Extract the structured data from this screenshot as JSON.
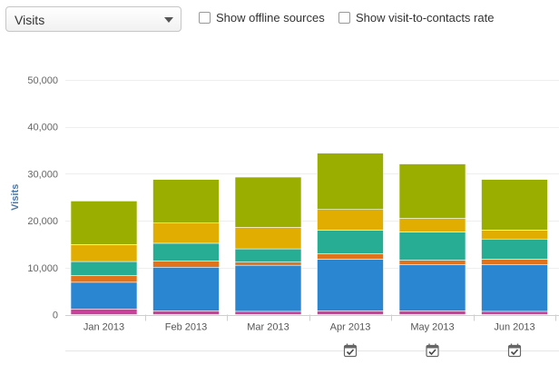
{
  "controls": {
    "metric_select": {
      "value": "Visits"
    },
    "offline_sources": {
      "label": "Show offline sources",
      "checked": false
    },
    "visit_rate": {
      "label": "Show visit-to-contacts rate",
      "checked": false
    }
  },
  "chart_data": {
    "type": "bar",
    "stacked": true,
    "ylabel": "Visits",
    "ylim": [
      0,
      50000
    ],
    "yticks": [
      0,
      10000,
      20000,
      30000,
      40000,
      50000
    ],
    "ytick_labels": [
      "0",
      "10,000",
      "20,000",
      "30,000",
      "40,000",
      "50,000"
    ],
    "categories": [
      "Jan 2013",
      "Feb 2013",
      "Mar 2013",
      "Apr 2013",
      "May 2013",
      "Jun 2013"
    ],
    "series": [
      {
        "color": "#c9419a",
        "values": [
          1200,
          800,
          700,
          800,
          800,
          700
        ]
      },
      {
        "color": "#2a86d0",
        "values": [
          5700,
          9300,
          9800,
          11000,
          9800,
          9900
        ]
      },
      {
        "color": "#e2731d",
        "values": [
          1400,
          1300,
          700,
          1200,
          1000,
          1200
        ]
      },
      {
        "color": "#26ad93",
        "values": [
          3000,
          3800,
          2800,
          5000,
          6000,
          4300
        ]
      },
      {
        "color": "#e1ad00",
        "values": [
          3600,
          4300,
          4600,
          4400,
          2900,
          1900
        ]
      },
      {
        "color": "#9aae00",
        "values": [
          9300,
          9300,
          10700,
          12000,
          11600,
          10800
        ]
      }
    ],
    "grid": true,
    "annotations": [
      "Apr 2013",
      "May 2013",
      "Jun 2013"
    ],
    "annotation_icon": "calendar-check-icon"
  }
}
